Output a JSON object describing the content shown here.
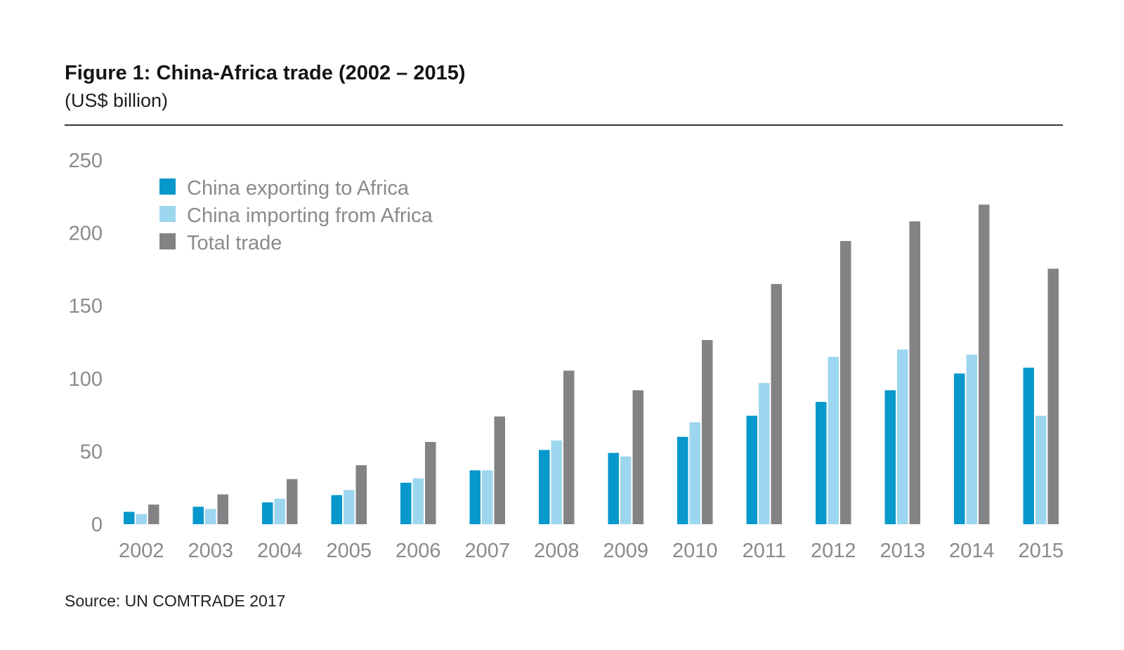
{
  "header": {
    "title": "Figure 1:  China-Africa trade (2002 – 2015)",
    "subtitle": "(US$ billion)"
  },
  "footer": {
    "source": "Source: UN COMTRADE 2017"
  },
  "chart_data": {
    "type": "bar",
    "title": "Figure 1:  China-Africa trade (2002 – 2015)",
    "subtitle": "(US$ billion)",
    "xlabel": "",
    "ylabel": "",
    "ylim": [
      0,
      250
    ],
    "yticks": [
      0,
      50,
      100,
      150,
      200,
      250
    ],
    "grid": false,
    "legend_position": "top-left",
    "categories": [
      "2002",
      "2003",
      "2004",
      "2005",
      "2006",
      "2007",
      "2008",
      "2009",
      "2010",
      "2011",
      "2012",
      "2013",
      "2014",
      "2015"
    ],
    "series": [
      {
        "name": "China exporting to Africa",
        "color": "#0798cc",
        "values": [
          8.5,
          12,
          15,
          20,
          28.5,
          37,
          51,
          49,
          60,
          74.5,
          84,
          92,
          103.5,
          107.5
        ]
      },
      {
        "name": "China importing from Africa",
        "color": "#9dd6ef",
        "values": [
          7,
          10.5,
          17.5,
          23.5,
          31.5,
          37,
          57.5,
          46.5,
          70,
          97,
          115,
          120,
          116.5,
          74.5
        ]
      },
      {
        "name": "Total trade",
        "color": "#838386",
        "values": [
          13.5,
          20.5,
          31,
          40.5,
          56.5,
          74,
          105.5,
          92,
          126.5,
          165,
          194.5,
          208,
          219.5,
          175.5
        ]
      }
    ]
  }
}
